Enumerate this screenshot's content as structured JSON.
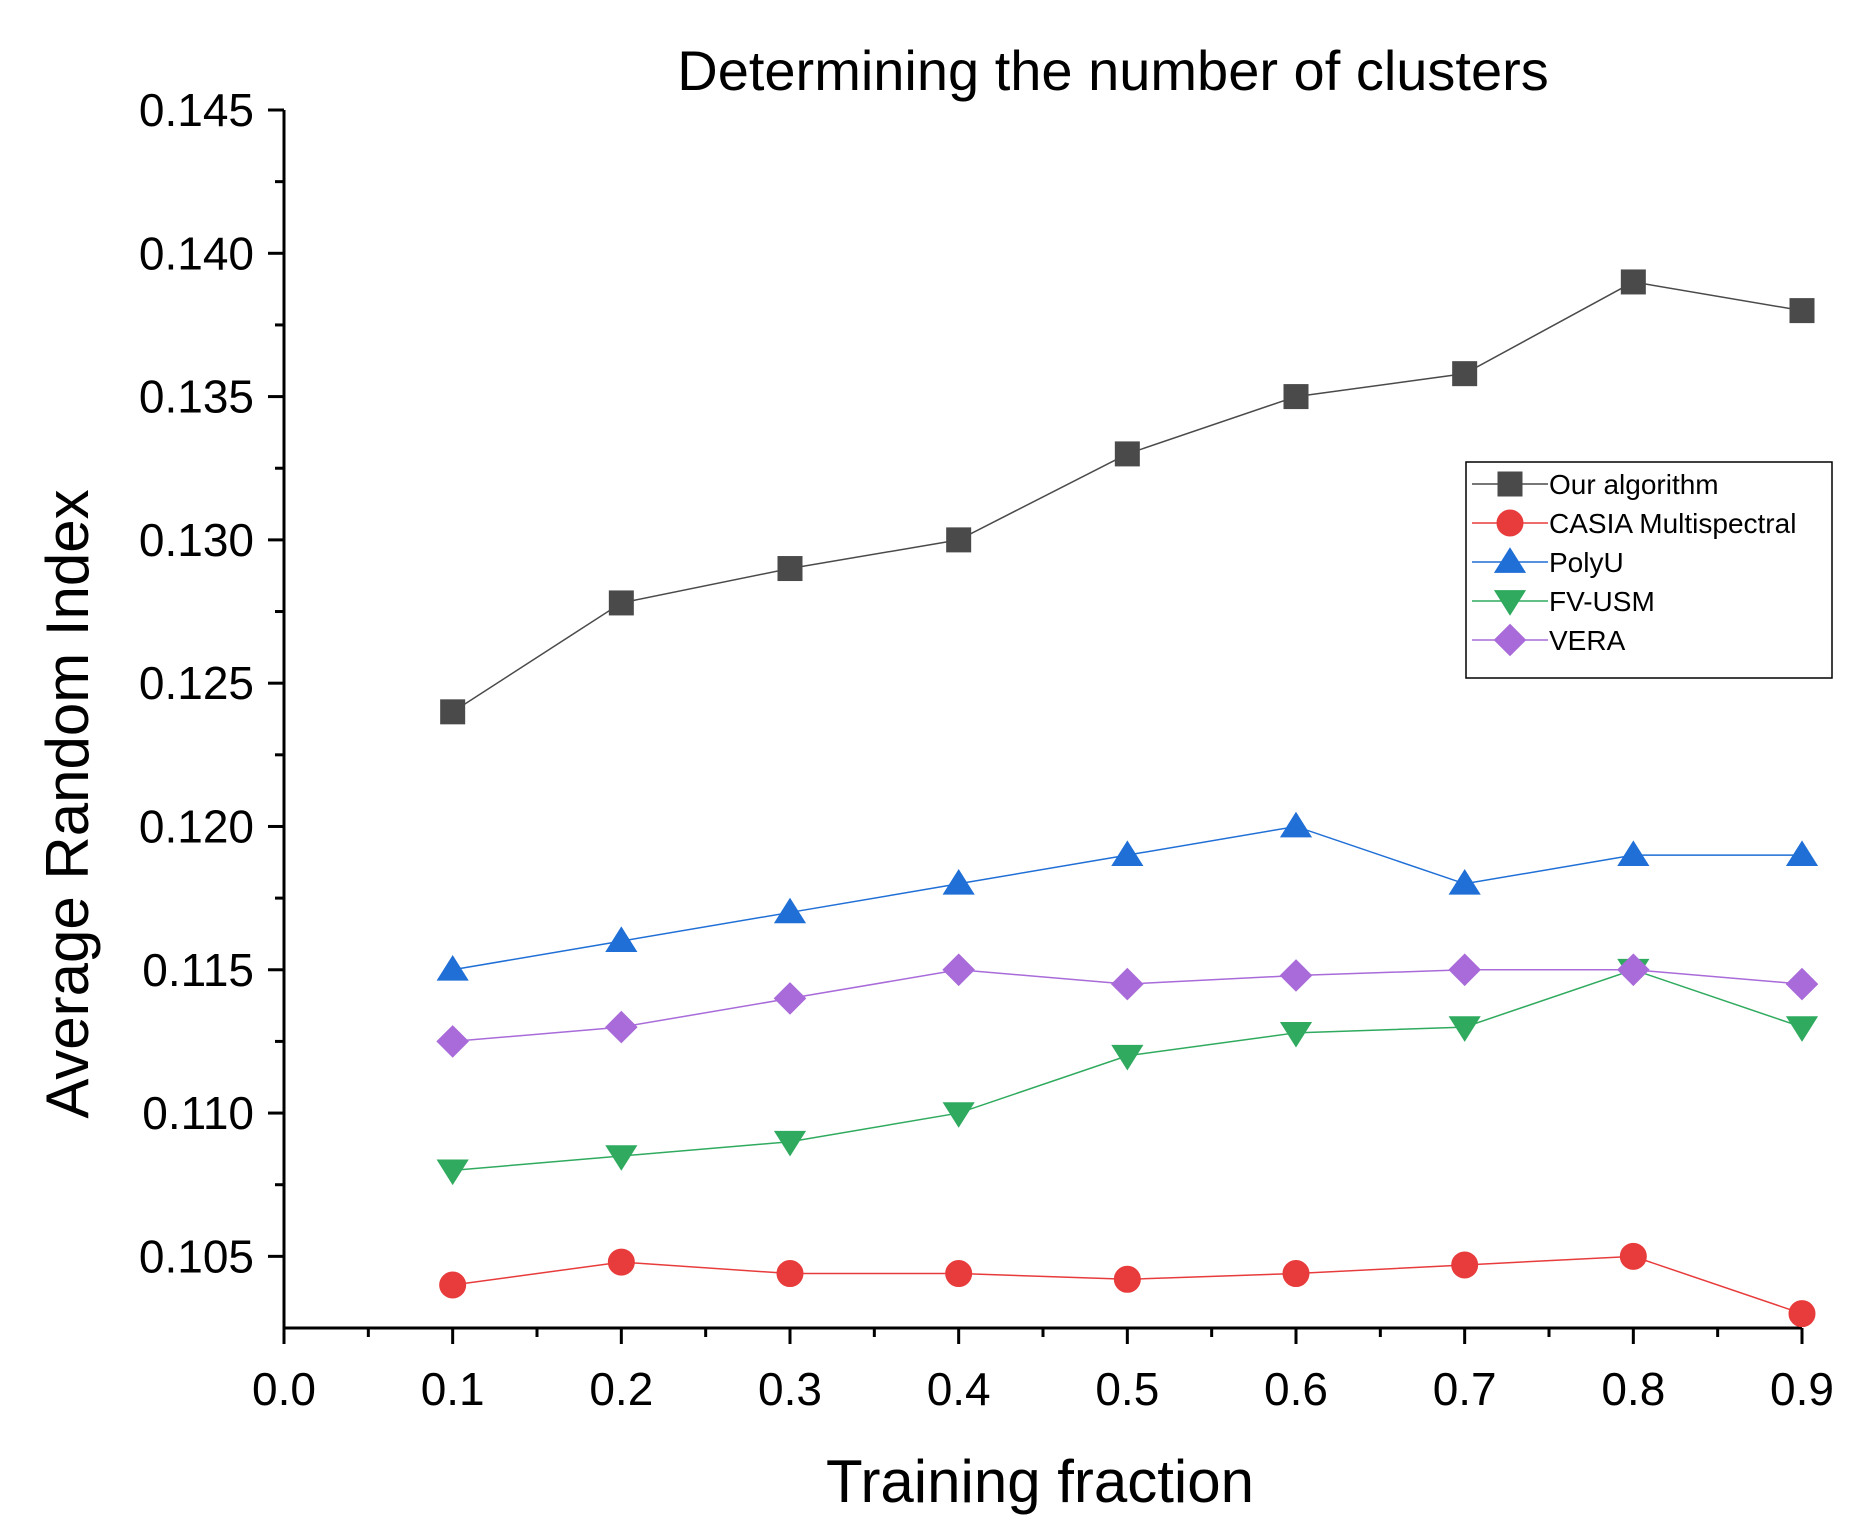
{
  "chart_data": {
    "type": "line",
    "title": "Determining the number of clusters",
    "xlabel": "Training fraction",
    "ylabel": "Average Random Index",
    "xlim": [
      0.0,
      0.9
    ],
    "ylim": [
      0.1025,
      0.145
    ],
    "xticks": [
      "0.0",
      "0.1",
      "0.2",
      "0.3",
      "0.4",
      "0.5",
      "0.6",
      "0.7",
      "0.8",
      "0.9"
    ],
    "yticks": [
      "0.105",
      "0.110",
      "0.115",
      "0.120",
      "0.125",
      "0.130",
      "0.135",
      "0.140",
      "0.145"
    ],
    "x": [
      0.1,
      0.2,
      0.3,
      0.4,
      0.5,
      0.6,
      0.7,
      0.8,
      0.9
    ],
    "legend_position": "right",
    "series": [
      {
        "name": "Our algorithm",
        "color": "#4a4a4a",
        "marker": "square",
        "values": [
          0.124,
          0.1278,
          0.129,
          0.13,
          0.133,
          0.135,
          0.1358,
          0.139,
          0.138
        ]
      },
      {
        "name": "CASIA Multispectral",
        "color": "#e83b3b",
        "marker": "circle",
        "values": [
          0.104,
          0.1048,
          0.1044,
          0.1044,
          0.1042,
          0.1044,
          0.1047,
          0.105,
          0.103
        ]
      },
      {
        "name": "PolyU",
        "color": "#1f6fd6",
        "marker": "triangle-up",
        "values": [
          0.115,
          0.116,
          0.117,
          0.118,
          0.119,
          0.12,
          0.118,
          0.119,
          0.119
        ]
      },
      {
        "name": "FV-USM",
        "color": "#2faa5e",
        "marker": "triangle-down",
        "values": [
          0.108,
          0.1085,
          0.109,
          0.11,
          0.112,
          0.1128,
          0.113,
          0.115,
          0.113
        ]
      },
      {
        "name": "VERA",
        "color": "#a86bd9",
        "marker": "diamond",
        "values": [
          0.1125,
          0.113,
          0.114,
          0.115,
          0.1145,
          0.1148,
          0.115,
          0.115,
          0.1145
        ]
      }
    ]
  }
}
